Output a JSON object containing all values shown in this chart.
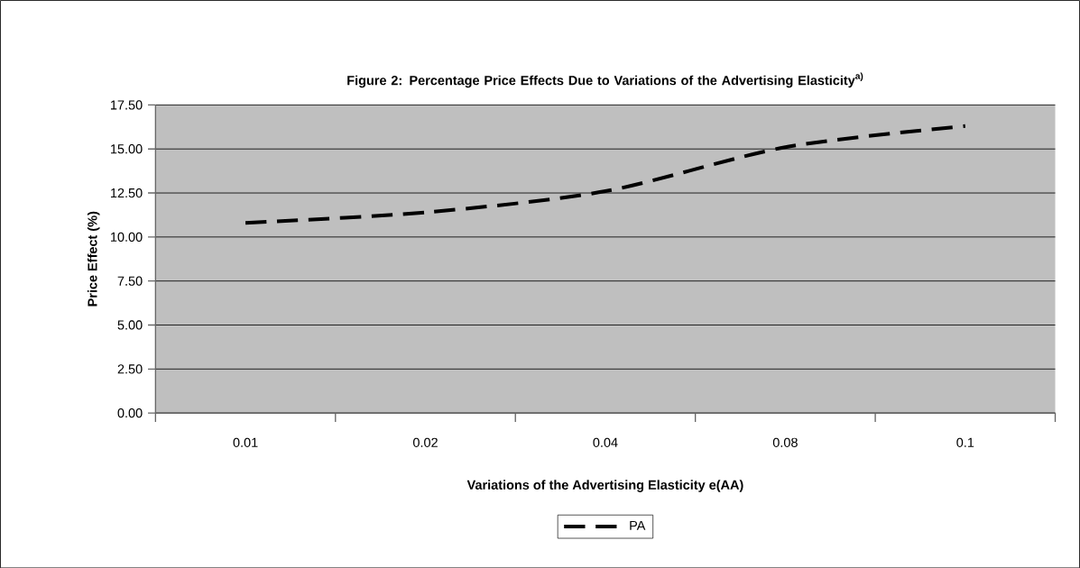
{
  "chart_data": {
    "type": "line",
    "title": "Figure 2: Percentage Price Effects Due to Variations of the Advertising Elasticity$^{a)}$",
    "xlabel": "Variations of the Advertising Elasticity e(AA)",
    "ylabel": "Price Effect (%)",
    "categories": [
      "0.01",
      "0.02",
      "0.04",
      "0.08",
      "0.1"
    ],
    "series": [
      {
        "name": "PA",
        "color": "#000000",
        "values": [
          10.8,
          11.4,
          12.6,
          15.1,
          16.3
        ]
      }
    ],
    "ylim": [
      0,
      17.5
    ],
    "yticks": [
      {
        "value": 0,
        "label": "0.00"
      },
      {
        "value": 2.5,
        "label": "2.50"
      },
      {
        "value": 5,
        "label": "5.00"
      },
      {
        "value": 7.5,
        "label": "7.50"
      },
      {
        "value": 10,
        "label": "10.00"
      },
      {
        "value": 12.5,
        "label": "12.50"
      },
      {
        "value": 15,
        "label": "15.00"
      },
      {
        "value": 17.5,
        "label": "17.50"
      }
    ],
    "grid": "y",
    "legend": "bottom",
    "line_style": "dashed",
    "marker": "none"
  }
}
